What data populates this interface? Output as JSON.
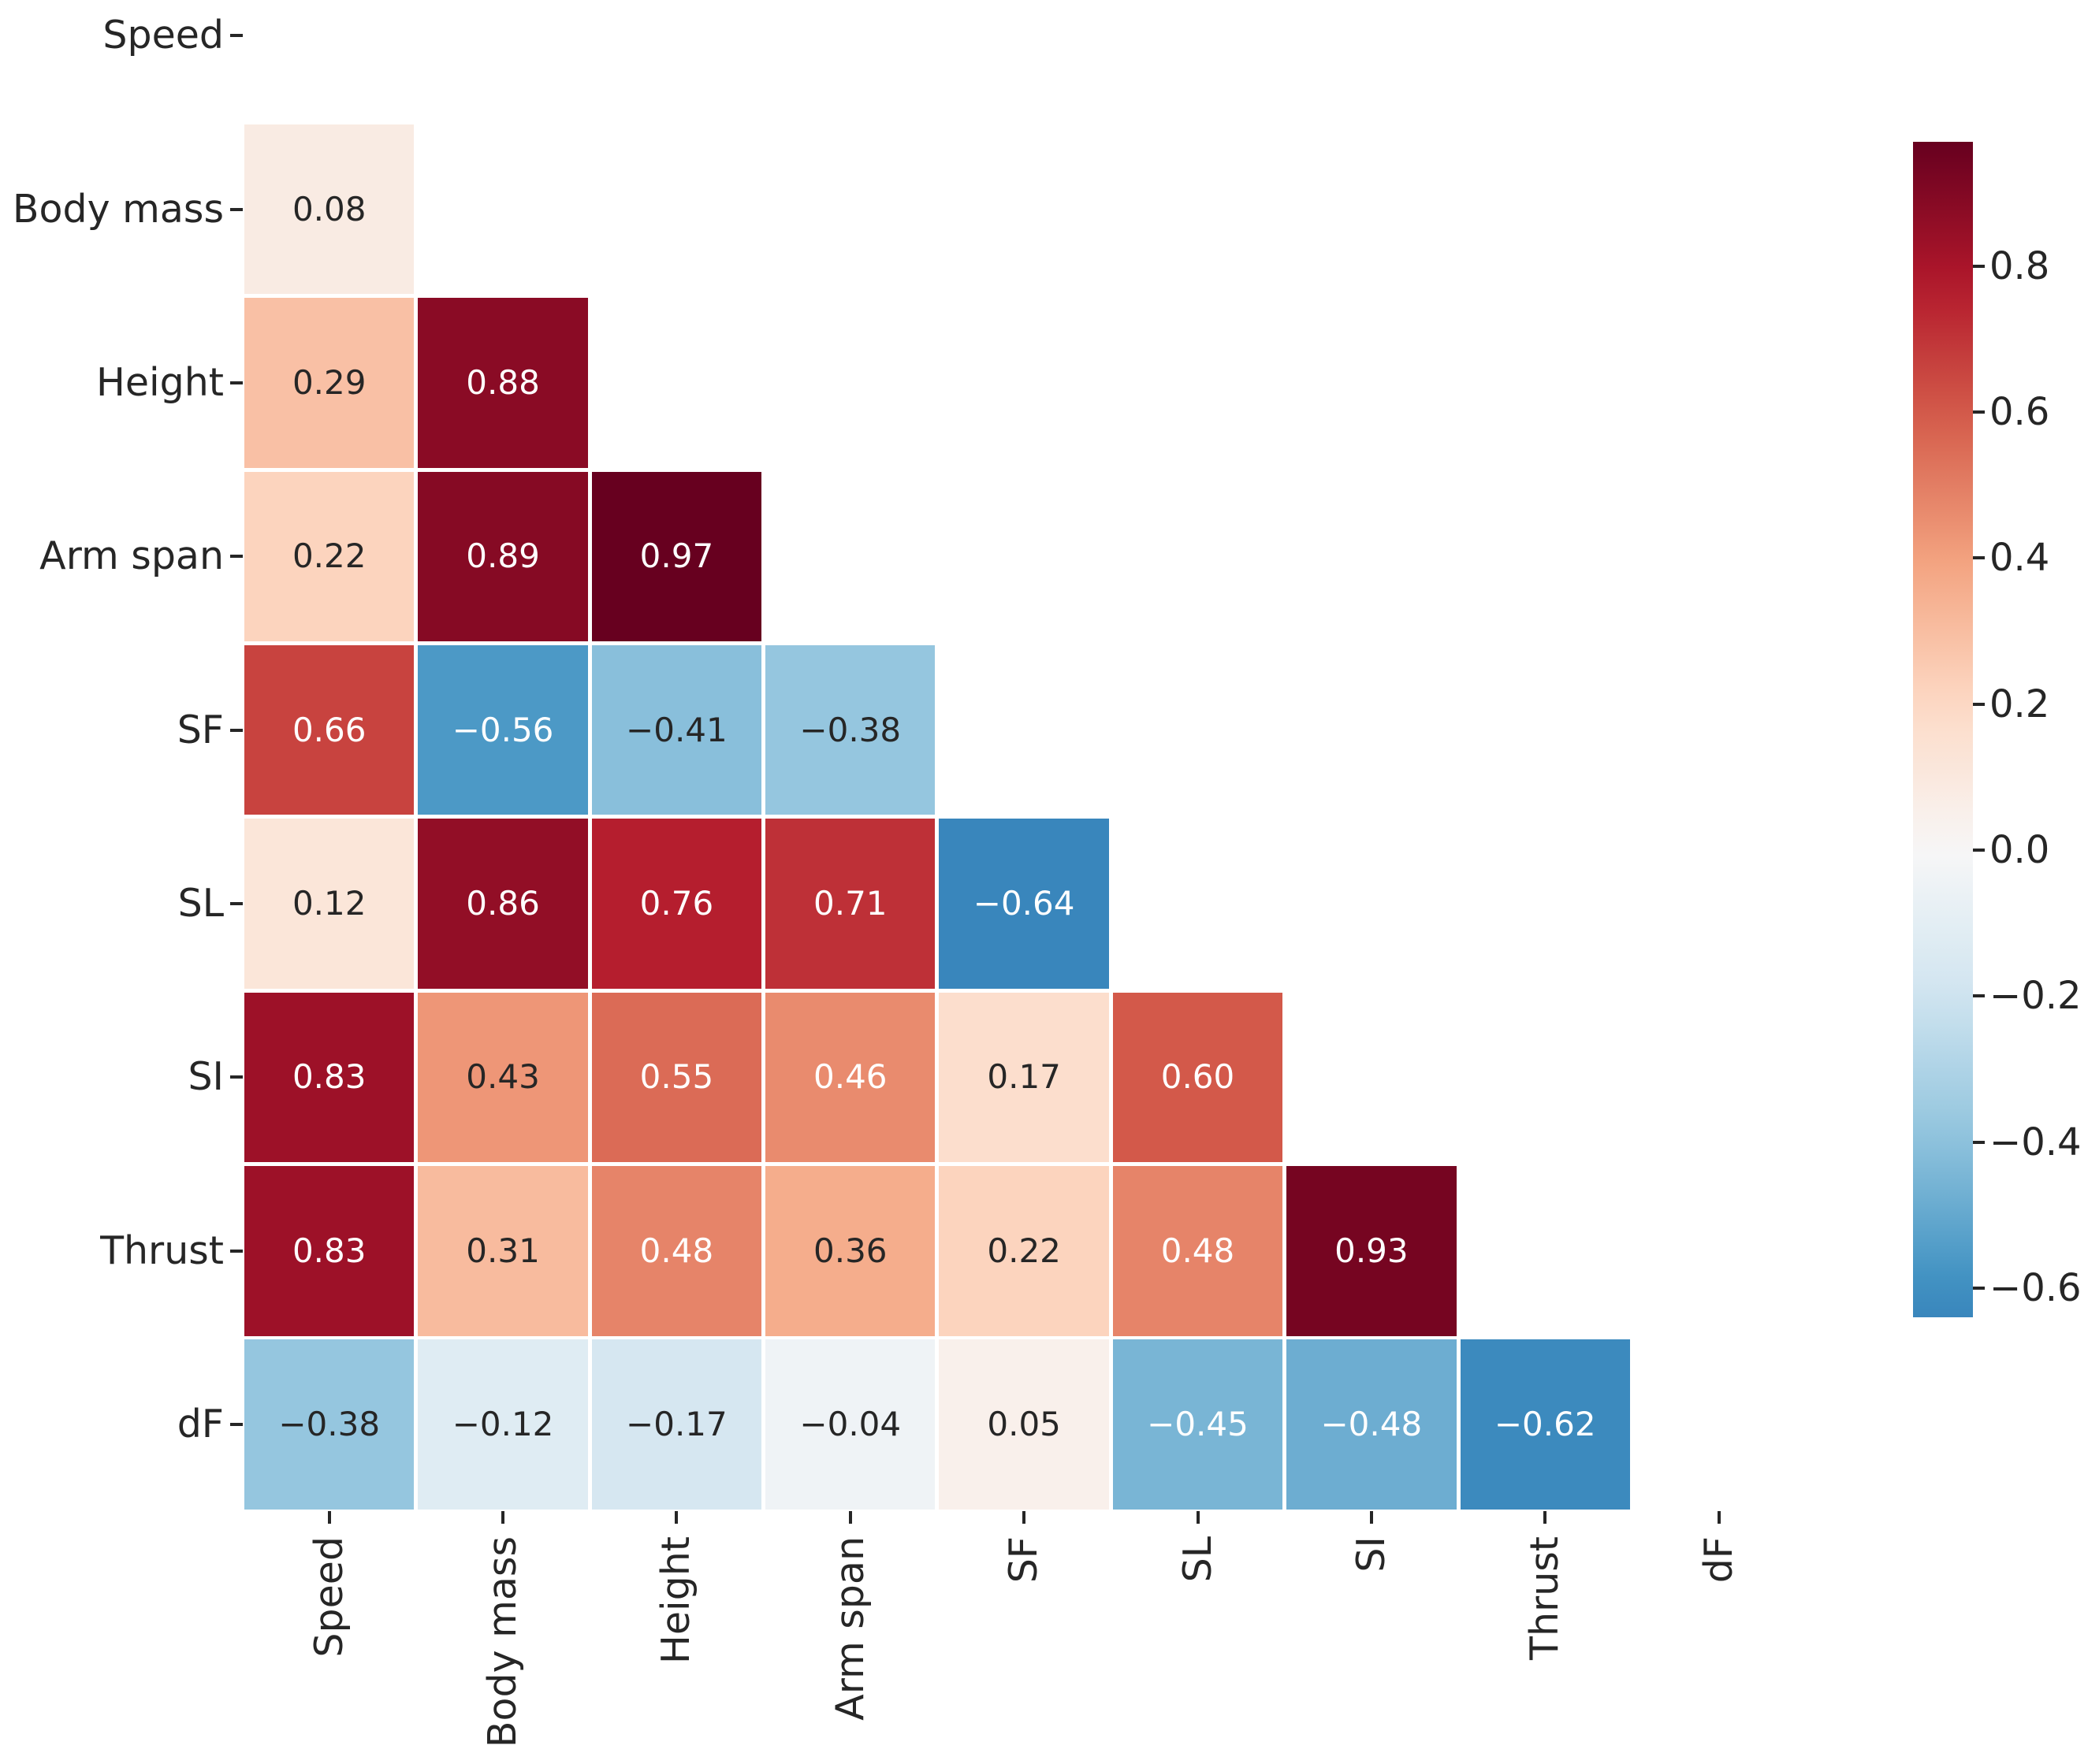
{
  "chart_data": {
    "type": "heatmap",
    "subtype": "correlation-matrix-lower-triangle",
    "title": "",
    "categories": [
      "Speed",
      "Body mass",
      "Height",
      "Arm span",
      "SF",
      "SL",
      "SI",
      "Thrust",
      "dF"
    ],
    "grid": "off",
    "legend_position": "colorbar-right",
    "mask": "upper-triangle-and-diagonal-hidden",
    "rows": [
      {
        "label": "Speed",
        "values": [],
        "text_colors": []
      },
      {
        "label": "Body mass",
        "values": [
          0.08
        ],
        "text_colors": [
          "dark"
        ]
      },
      {
        "label": "Height",
        "values": [
          0.29,
          0.88
        ],
        "text_colors": [
          "dark",
          "light"
        ]
      },
      {
        "label": "Arm span",
        "values": [
          0.22,
          0.89,
          0.97
        ],
        "text_colors": [
          "dark",
          "light",
          "light"
        ]
      },
      {
        "label": "SF",
        "values": [
          0.66,
          -0.56,
          -0.41,
          -0.38
        ],
        "text_colors": [
          "light",
          "light",
          "dark",
          "dark"
        ]
      },
      {
        "label": "SL",
        "values": [
          0.12,
          0.86,
          0.76,
          0.71,
          -0.64
        ],
        "text_colors": [
          "dark",
          "light",
          "light",
          "light",
          "light"
        ]
      },
      {
        "label": "SI",
        "values": [
          0.83,
          0.43,
          0.55,
          0.46,
          0.17,
          0.6
        ],
        "text_colors": [
          "light",
          "dark",
          "light",
          "light",
          "dark",
          "light"
        ]
      },
      {
        "label": "Thrust",
        "values": [
          0.83,
          0.31,
          0.48,
          0.36,
          0.22,
          0.48,
          0.93
        ],
        "text_colors": [
          "light",
          "dark",
          "light",
          "dark",
          "dark",
          "light",
          "light"
        ]
      },
      {
        "label": "dF",
        "values": [
          -0.38,
          -0.12,
          -0.17,
          -0.04,
          0.05,
          -0.45,
          -0.48,
          -0.62
        ],
        "text_colors": [
          "dark",
          "dark",
          "dark",
          "dark",
          "dark",
          "light",
          "light",
          "light"
        ]
      }
    ],
    "annotation_colors": {
      "dark": "#262626",
      "light": "#ffffff"
    },
    "colormap": {
      "name": "RdBu_r",
      "center": 0,
      "norm_min": -0.97,
      "norm_max": 0.97,
      "anchors": [
        "#053061",
        "#2166ac",
        "#4393c3",
        "#92c5de",
        "#d1e5f0",
        "#f7f7f7",
        "#fddbc7",
        "#f4a582",
        "#d6604d",
        "#b2182b",
        "#67001f"
      ]
    },
    "colorbar": {
      "top_value": 0.97,
      "bottom_value": -0.64,
      "tick_values": [
        0.8,
        0.6,
        0.4,
        0.2,
        0.0,
        -0.2,
        -0.4,
        -0.6
      ],
      "tick_labels": [
        "0.8",
        "0.6",
        "0.4",
        "0.2",
        "0.0",
        "−0.2",
        "−0.4",
        "−0.6"
      ]
    },
    "minus_glyph": "−",
    "axis_color": "#262626",
    "background": "#ffffff"
  }
}
